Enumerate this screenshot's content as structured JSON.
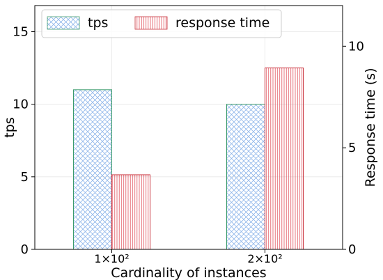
{
  "chart_data": {
    "type": "bar",
    "categories": [
      "1×10²",
      "2×10²"
    ],
    "xlabel": "Cardinality of instances",
    "series": [
      {
        "name": "tps",
        "axis": "left",
        "values": [
          11.0,
          10.0
        ],
        "fill_pattern": "crosshatch",
        "hatch_color": "#8fb6ea",
        "edge_color": "#3a9a6b"
      },
      {
        "name": "response time",
        "axis": "right",
        "values": [
          3.67,
          8.93
        ],
        "fill_pattern": "vertical-lines",
        "hatch_color": "#e0505a",
        "edge_color": "#c8323c"
      }
    ],
    "left_axis": {
      "label": "tps",
      "ylim": [
        0,
        16.8
      ],
      "ticks": [
        0,
        5,
        10,
        15
      ]
    },
    "right_axis": {
      "label": "Response time (s)",
      "ylim": [
        0,
        12
      ],
      "ticks": [
        0,
        5,
        10
      ]
    },
    "grid": true,
    "legend_position": "top"
  }
}
